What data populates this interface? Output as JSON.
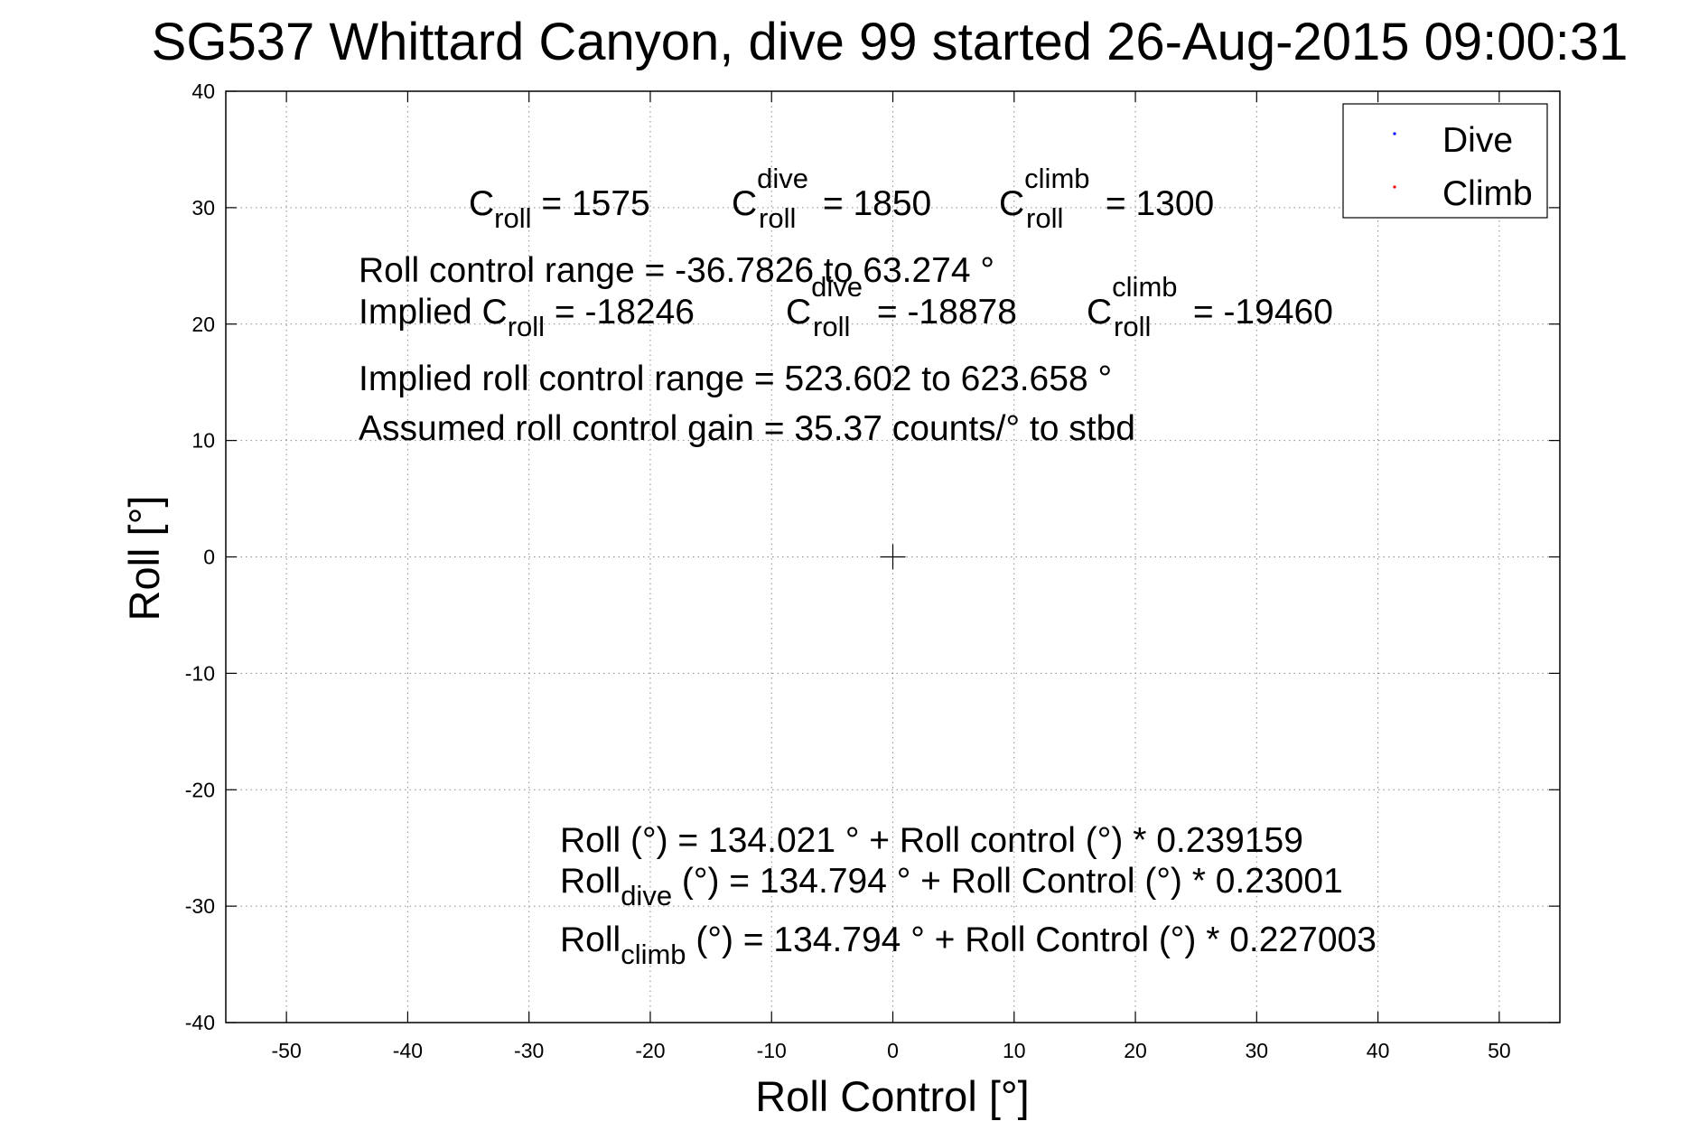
{
  "chart_data": {
    "type": "scatter",
    "title": "SG537 Whittard Canyon, dive 99 started 26-Aug-2015 09:00:31",
    "xlabel": "Roll Control [°]",
    "ylabel": "Roll [°]",
    "xlim": [
      -55,
      55
    ],
    "ylim": [
      -40,
      40
    ],
    "xticks": [
      -50,
      -40,
      -30,
      -20,
      -10,
      0,
      10,
      20,
      30,
      40,
      50
    ],
    "yticks": [
      -40,
      -30,
      -20,
      -10,
      0,
      10,
      20,
      30,
      40
    ],
    "xtick_labels": [
      "-50",
      "-40",
      "-30",
      "-20",
      "-10",
      "0",
      "10",
      "20",
      "30",
      "40",
      "50"
    ],
    "ytick_labels": [
      "-40",
      "-30",
      "-20",
      "-10",
      "0",
      "10",
      "20",
      "30",
      "40"
    ],
    "grid": true,
    "grid_style": "dotted",
    "origin_marker": "+",
    "legend_position": "top-right",
    "series": [
      {
        "name": "Dive",
        "color": "#0000ff",
        "marker": "point",
        "points": []
      },
      {
        "name": "Climb",
        "color": "#ff0000",
        "marker": "point",
        "points": []
      }
    ],
    "annotations": {
      "c_values": [
        {
          "base": "C",
          "sub": "roll",
          "sup": "",
          "rest": " = 1575"
        },
        {
          "base": "C",
          "sub": "roll",
          "sup": "dive",
          "rest": " = 1850"
        },
        {
          "base": "C",
          "sub": "roll",
          "sup": "climb",
          "rest": " = 1300"
        }
      ],
      "roll_control_range": "Roll control range = -36.7826 to 63.274 °",
      "implied_c": [
        {
          "base": "Implied C",
          "sub": "roll",
          "sup": "",
          "rest": " = -18246"
        },
        {
          "base": "C",
          "sub": "roll",
          "sup": "dive",
          "rest": " = -18878"
        },
        {
          "base": "C",
          "sub": "roll",
          "sup": "climb",
          "rest": " = -19460"
        }
      ],
      "implied_range": "Implied roll control range = 523.602 to 623.658 °",
      "assumed_gain": "Assumed roll control gain = 35.37 counts/° to stbd",
      "fit_all": "Roll (°) = 134.021 ° + Roll control (°) * 0.239159",
      "fit_dive": {
        "base": "Roll",
        "sub": "dive",
        "rest": " (°) = 134.794 ° + Roll Control (°) * 0.23001"
      },
      "fit_climb": {
        "base": "Roll",
        "sub": "climb",
        "rest": " (°) = 134.794 ° + Roll Control (°) * 0.227003"
      }
    }
  }
}
